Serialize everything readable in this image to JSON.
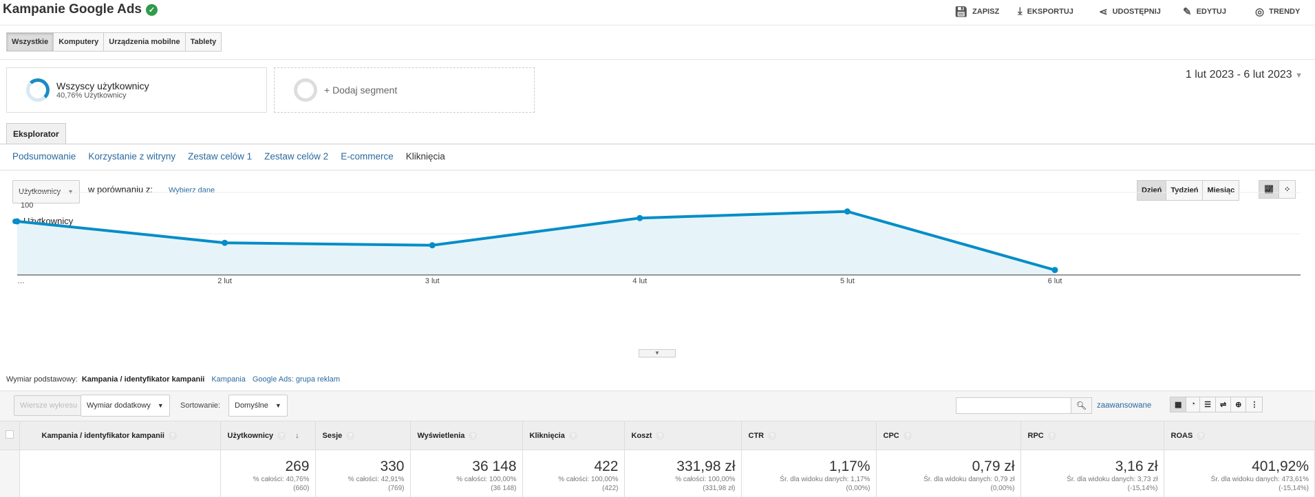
{
  "header": {
    "title": "Kampanie Google Ads",
    "actions": [
      {
        "label": "ZAPISZ",
        "icon": "save-icon"
      },
      {
        "label": "EKSPORTUJ",
        "icon": "download-icon"
      },
      {
        "label": "UDOSTĘPNIJ",
        "icon": "share-icon"
      },
      {
        "label": "EDYTUJ",
        "icon": "pencil-icon"
      },
      {
        "label": "TRENDY",
        "icon": "trends-icon"
      }
    ]
  },
  "device_tabs": [
    "Wszystkie",
    "Komputery",
    "Urządzenia mobilne",
    "Tablety"
  ],
  "segments": {
    "active_name": "Wszyscy użytkownicy",
    "active_sub": "40,76% Użytkownicy",
    "add_label": "+ Dodaj segment"
  },
  "date_range": "1 lut 2023 - 6 lut 2023",
  "explorer_tab": "Eksplorator",
  "subtabs": [
    "Podsumowanie",
    "Korzystanie z witryny",
    "Zestaw celów 1",
    "Zestaw celów 2",
    "E-commerce",
    "Kliknięcia"
  ],
  "chart_controls": {
    "metric": "Użytkownicy",
    "compare_label": "w porównaniu z:",
    "choose_label": "Wybierz dane",
    "periods": [
      "Dzień",
      "Tydzień",
      "Miesiąc"
    ]
  },
  "chart_data": {
    "type": "line",
    "series": [
      {
        "name": "Użytkownicy",
        "color": "#058dc7",
        "values": [
          65,
          39,
          36,
          69,
          77,
          6
        ]
      }
    ],
    "categories": [
      "…",
      "2 lut",
      "3 lut",
      "4 lut",
      "5 lut",
      "6 lut"
    ],
    "yticks": [
      100,
      50
    ],
    "ylim": [
      0,
      100
    ]
  },
  "dimension": {
    "label": "Wymiar podstawowy:",
    "active": "Kampania / identyfikator kampanii",
    "options": [
      "Kampania",
      "Google Ads: grupa reklam"
    ]
  },
  "toolbar": {
    "plot_rows": "Wiersze wykresu",
    "secondary": "Wymiar dodatkowy",
    "sort_label": "Sortowanie:",
    "sort_value": "Domyślne",
    "search_placeholder": "",
    "advanced": "zaawansowane"
  },
  "table": {
    "columns": [
      "Kampania / identyfikator kampanii",
      "Użytkownicy",
      "Sesje",
      "Wyświetlenia",
      "Kliknięcia",
      "Koszt",
      "CTR",
      "CPC",
      "RPC",
      "ROAS"
    ],
    "totals": [
      {
        "value": "269",
        "sub": "% całości: 40,76%",
        "sub2": "(660)"
      },
      {
        "value": "330",
        "sub": "% całości: 42,91%",
        "sub2": "(769)"
      },
      {
        "value": "36 148",
        "sub": "% całości: 100,00%",
        "sub2": "(36 148)"
      },
      {
        "value": "422",
        "sub": "% całości: 100,00%",
        "sub2": "(422)"
      },
      {
        "value": "331,98 zł",
        "sub": "% całości: 100,00%",
        "sub2": "(331,98 zł)"
      },
      {
        "value": "1,17%",
        "sub": "Śr. dla widoku danych: 1,17%",
        "sub2": "(0,00%)"
      },
      {
        "value": "0,79 zł",
        "sub": "Śr. dla widoku danych: 0,79 zł",
        "sub2": "(0,00%)"
      },
      {
        "value": "3,16 zł",
        "sub": "Śr. dla widoku danych: 3,73 zł",
        "sub2": "(-15,14%)"
      },
      {
        "value": "401,92%",
        "sub": "Śr. dla widoku danych: 473,61%",
        "sub2": "(-15,14%)"
      }
    ]
  }
}
